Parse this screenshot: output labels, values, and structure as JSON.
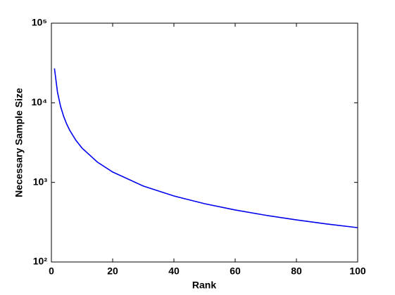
{
  "chart_data": {
    "type": "line",
    "xlabel": "Rank",
    "ylabel": "Necessary Sample Size",
    "x": [
      1,
      2,
      3,
      4,
      5,
      6,
      8,
      10,
      15,
      20,
      30,
      40,
      50,
      60,
      70,
      80,
      90,
      100
    ],
    "series": [
      {
        "color": "#0000ee",
        "values": [
          27000,
          13500,
          9000,
          6750,
          5400,
          4500,
          3375,
          2700,
          1800,
          1350,
          900,
          675,
          540,
          450,
          386,
          338,
          300,
          270
        ]
      }
    ],
    "xlim": [
      0,
      100
    ],
    "xticks": [
      0,
      20,
      40,
      60,
      80,
      100
    ],
    "ylim": [
      100,
      100000
    ],
    "log_y": true,
    "yticks": [
      {
        "value": 100,
        "label": "10²"
      },
      {
        "value": 1000,
        "label": "10³"
      },
      {
        "value": 10000,
        "label": "10⁴"
      },
      {
        "value": 100000,
        "label": "10⁵"
      }
    ],
    "grid": false
  }
}
